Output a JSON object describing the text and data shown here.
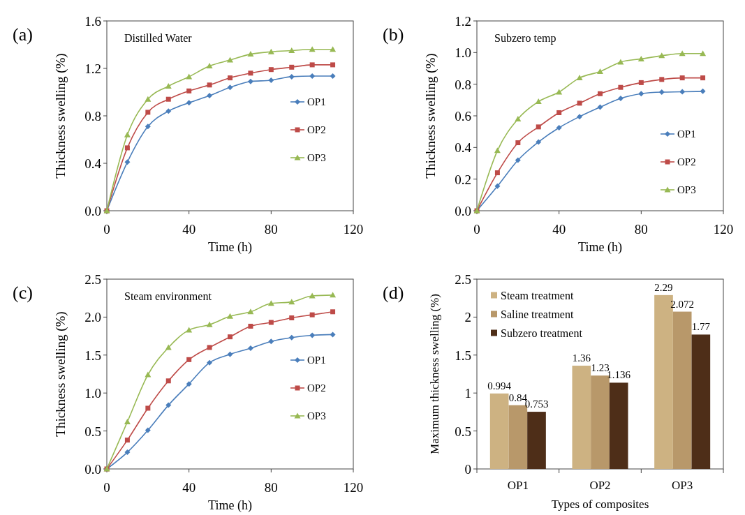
{
  "chart_data": [
    {
      "type": "line",
      "title": "(a)",
      "subtitle": "Distilled Water",
      "xlabel": "Time (h)",
      "ylabel": "Thickness swelling (%)",
      "x": [
        0,
        10,
        20,
        30,
        40,
        50,
        60,
        70,
        80,
        90,
        100,
        110
      ],
      "xlim": [
        0,
        120
      ],
      "xticks": [
        0,
        40,
        80,
        120
      ],
      "ylim": [
        0,
        1.6
      ],
      "yticks": [
        {
          "value": 0,
          "label": "0.0"
        },
        0.4,
        0.8,
        1.2,
        1.6
      ],
      "legend": "right",
      "grid": false,
      "series": [
        {
          "name": "OP1",
          "color": "#4a7ebb",
          "marker": "diamond",
          "values": [
            0,
            0.41,
            0.71,
            0.84,
            0.91,
            0.97,
            1.04,
            1.09,
            1.1,
            1.13,
            1.135,
            1.135
          ]
        },
        {
          "name": "OP2",
          "color": "#be4b48",
          "marker": "square",
          "values": [
            0,
            0.53,
            0.83,
            0.94,
            1.01,
            1.06,
            1.12,
            1.16,
            1.19,
            1.21,
            1.23,
            1.23
          ]
        },
        {
          "name": "OP3",
          "color": "#98b954",
          "marker": "triangle",
          "values": [
            0,
            0.64,
            0.94,
            1.05,
            1.13,
            1.22,
            1.27,
            1.32,
            1.34,
            1.35,
            1.36,
            1.36
          ]
        }
      ]
    },
    {
      "type": "line",
      "title": "(b)",
      "subtitle": "Subzero temp",
      "xlabel": "Time (h)",
      "ylabel": "Thickness swelling (%)",
      "x": [
        0,
        10,
        20,
        30,
        40,
        50,
        60,
        70,
        80,
        90,
        100,
        110
      ],
      "xlim": [
        0,
        120
      ],
      "xticks": [
        0,
        40,
        80,
        120
      ],
      "ylim": [
        0,
        1.2
      ],
      "yticks": [
        {
          "value": 0,
          "label": "0.0"
        },
        0.2,
        0.4,
        0.6,
        0.8,
        {
          "value": 1,
          "label": "1.0"
        },
        1.2
      ],
      "legend": "bottom right",
      "grid": false,
      "series": [
        {
          "name": "OP1",
          "color": "#4a7ebb",
          "marker": "diamond",
          "values": [
            0,
            0.155,
            0.32,
            0.435,
            0.525,
            0.595,
            0.655,
            0.71,
            0.74,
            0.75,
            0.752,
            0.755
          ]
        },
        {
          "name": "OP2",
          "color": "#be4b48",
          "marker": "square",
          "values": [
            0,
            0.24,
            0.43,
            0.53,
            0.62,
            0.68,
            0.74,
            0.78,
            0.81,
            0.83,
            0.84,
            0.84
          ]
        },
        {
          "name": "OP3",
          "color": "#98b954",
          "marker": "triangle",
          "values": [
            0,
            0.38,
            0.58,
            0.69,
            0.75,
            0.84,
            0.88,
            0.94,
            0.96,
            0.98,
            0.994,
            0.994
          ]
        }
      ]
    },
    {
      "type": "line",
      "title": "(c)",
      "subtitle": "Steam environment",
      "xlabel": "Time (h)",
      "ylabel": "Thickness swelling (%)",
      "x": [
        0,
        10,
        20,
        30,
        40,
        50,
        60,
        70,
        80,
        90,
        100,
        110
      ],
      "xlim": [
        0,
        120
      ],
      "xticks": [
        0,
        40,
        80,
        120
      ],
      "ylim": [
        0,
        2.5
      ],
      "yticks": [
        {
          "value": 0,
          "label": "0.0"
        },
        0.5,
        {
          "value": 1,
          "label": "1.0"
        },
        1.5,
        {
          "value": 2,
          "label": "2.0"
        },
        2.5
      ],
      "legend": "right",
      "grid": false,
      "series": [
        {
          "name": "OP1",
          "color": "#4a7ebb",
          "marker": "diamond",
          "values": [
            0,
            0.22,
            0.51,
            0.84,
            1.12,
            1.4,
            1.51,
            1.59,
            1.68,
            1.73,
            1.76,
            1.77
          ]
        },
        {
          "name": "OP2",
          "color": "#be4b48",
          "marker": "square",
          "values": [
            0,
            0.38,
            0.8,
            1.16,
            1.44,
            1.6,
            1.74,
            1.88,
            1.93,
            1.99,
            2.03,
            2.07
          ]
        },
        {
          "name": "OP3",
          "color": "#98b954",
          "marker": "triangle",
          "values": [
            0,
            0.62,
            1.24,
            1.6,
            1.83,
            1.9,
            2.01,
            2.07,
            2.18,
            2.2,
            2.28,
            2.29
          ]
        }
      ]
    },
    {
      "type": "bar",
      "title": "(d)",
      "xlabel": "Types of composites",
      "ylabel": "Maximum thickness swelling (%)",
      "categories": [
        "OP1",
        "OP2",
        "OP3"
      ],
      "ylim": [
        0,
        2.5
      ],
      "yticks": [
        0,
        0.5,
        1,
        1.5,
        2,
        2.5
      ],
      "legend": "top left",
      "grid": false,
      "data_labels": true,
      "series": [
        {
          "name": "Steam treatment",
          "color": "#cdb282",
          "values": [
            0.994,
            1.36,
            2.29
          ]
        },
        {
          "name": "Saline treatment",
          "color": "#b8986a",
          "values": [
            0.84,
            1.23,
            2.072
          ]
        },
        {
          "name": "Subzero treatment",
          "color": "#4e2e18",
          "values": [
            0.753,
            1.136,
            1.77
          ]
        }
      ]
    }
  ]
}
